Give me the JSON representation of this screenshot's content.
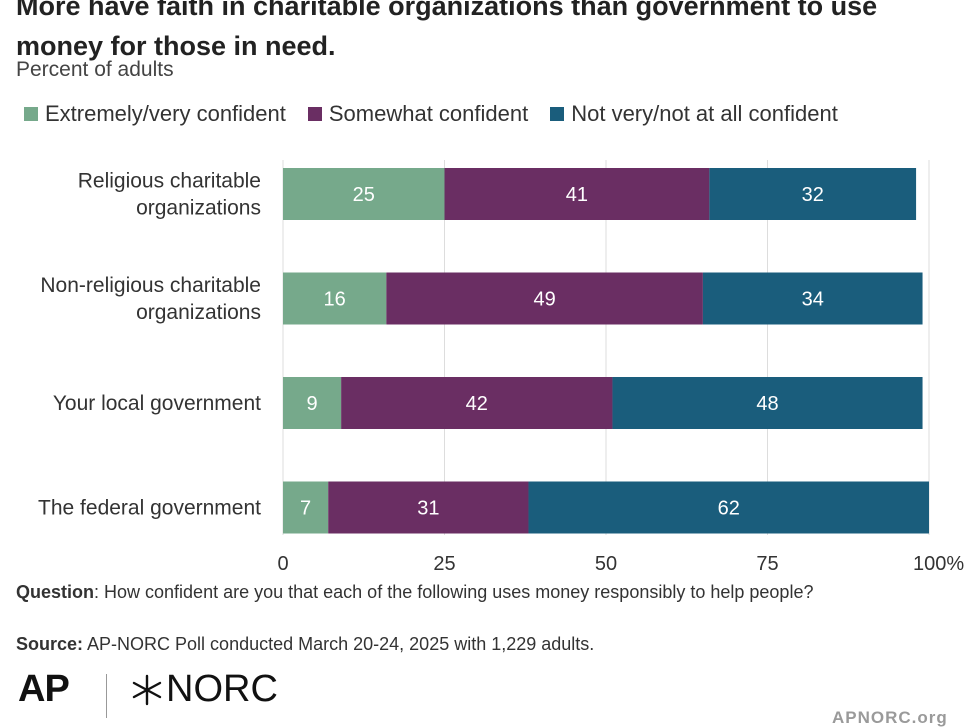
{
  "header": {
    "title": "More have faith in charitable organizations than government to use\nmoney for those in need.",
    "subtitle": "Percent of adults"
  },
  "chart_data": {
    "type": "bar",
    "orientation": "horizontal",
    "stacked": true,
    "categories": [
      "Religious charitable\norganizations",
      "Non-religious charitable\norganizations",
      "Your local government",
      "The federal government"
    ],
    "series": [
      {
        "name": "Extremely/very confident",
        "color": "#76a98b",
        "values": [
          25,
          16,
          9,
          7
        ]
      },
      {
        "name": "Somewhat confident",
        "color": "#6a2e63",
        "values": [
          41,
          49,
          42,
          31
        ]
      },
      {
        "name": "Not very/not at all confident",
        "color": "#1a5d7c",
        "values": [
          32,
          34,
          48,
          62
        ]
      }
    ],
    "xlim": [
      0,
      100
    ],
    "xticks": [
      "0",
      "25",
      "50",
      "75",
      "100%"
    ],
    "grid": true,
    "legend_position": "top"
  },
  "footnote": {
    "question_label": "Question",
    "question_text": ": How confident are you that each of the following uses money responsibly to help people?",
    "source_label": "Source:",
    "source_text": " AP-NORC Poll conducted March 20-24, 2025 with 1,229 adults."
  },
  "branding": {
    "ap_logo": "AP",
    "norc_logo": "NORC",
    "norc_icon": "norc-asterisk-icon",
    "site_url": "APNORC.org"
  }
}
